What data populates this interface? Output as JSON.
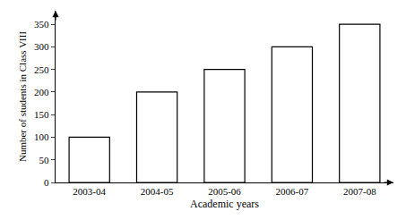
{
  "chart_data": {
    "type": "bar",
    "categories": [
      "2003-04",
      "2004-05",
      "2005-06",
      "2006-07",
      "2007-08"
    ],
    "values": [
      100,
      200,
      250,
      300,
      350
    ],
    "color": "#ffffff",
    "x_label": "Academic years",
    "y_label": "Number of students in Class VIII",
    "ylim": [
      0,
      380
    ],
    "yticks": [
      0,
      50,
      100,
      150,
      200,
      250,
      300,
      350
    ],
    "grid": false
  }
}
